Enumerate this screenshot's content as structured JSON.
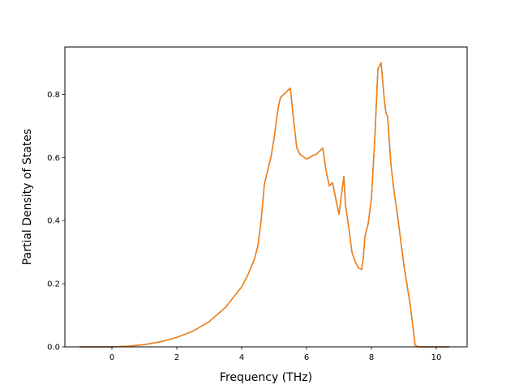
{
  "chart_data": {
    "type": "line",
    "title": "",
    "xlabel": "Frequency (THz)",
    "ylabel": "Partial Density of States",
    "xlim": [
      -1.45,
      10.95
    ],
    "ylim": [
      0.0,
      0.95
    ],
    "grid": false,
    "legend": "none",
    "xticks": [
      0,
      2,
      4,
      6,
      8,
      10
    ],
    "yticks": [
      0.0,
      0.2,
      0.4,
      0.6,
      0.8
    ],
    "xtick_labels": [
      "0",
      "2",
      "4",
      "6",
      "8",
      "10"
    ],
    "ytick_labels": [
      "0.0",
      "0.2",
      "0.4",
      "0.6",
      "0.8"
    ],
    "series": [
      {
        "color": "#1f77b4",
        "x": [
          -1.0,
          0.0,
          0.5,
          1.0,
          1.5,
          2.0,
          2.5,
          3.0,
          3.5,
          4.0,
          4.2,
          4.4,
          4.5,
          4.6,
          4.7,
          4.9,
          5.0,
          5.1,
          5.15,
          5.2,
          5.3,
          5.4,
          5.45,
          5.5,
          5.6,
          5.7,
          5.8,
          6.0,
          6.1,
          6.2,
          6.3,
          6.4,
          6.5,
          6.6,
          6.7,
          6.8,
          6.9,
          7.0,
          7.1,
          7.15,
          7.2,
          7.3,
          7.4,
          7.5,
          7.6,
          7.7,
          7.75,
          7.8,
          7.9,
          8.0,
          8.1,
          8.2,
          8.3,
          8.35,
          8.4,
          8.45,
          8.5,
          8.6,
          8.7,
          8.8,
          9.0,
          9.2,
          9.35,
          9.45,
          9.6,
          10.0,
          10.4
        ],
        "y": [
          0.0,
          0.0,
          0.002,
          0.007,
          0.016,
          0.03,
          0.05,
          0.08,
          0.125,
          0.19,
          0.23,
          0.28,
          0.32,
          0.4,
          0.515,
          0.6,
          0.66,
          0.74,
          0.77,
          0.79,
          0.8,
          0.81,
          0.815,
          0.82,
          0.72,
          0.63,
          0.61,
          0.595,
          0.6,
          0.607,
          0.61,
          0.62,
          0.63,
          0.56,
          0.51,
          0.52,
          0.47,
          0.42,
          0.5,
          0.54,
          0.45,
          0.38,
          0.3,
          0.27,
          0.25,
          0.245,
          0.28,
          0.35,
          0.39,
          0.47,
          0.65,
          0.88,
          0.9,
          0.84,
          0.78,
          0.74,
          0.73,
          0.58,
          0.49,
          0.42,
          0.26,
          0.13,
          0.005,
          0.0,
          0.0,
          0.0,
          0.0
        ]
      },
      {
        "color": "#ff7f0e",
        "x": [
          -1.0,
          0.0,
          0.5,
          1.0,
          1.5,
          2.0,
          2.5,
          3.0,
          3.5,
          4.0,
          4.2,
          4.4,
          4.5,
          4.6,
          4.7,
          4.9,
          5.0,
          5.1,
          5.15,
          5.2,
          5.3,
          5.4,
          5.45,
          5.5,
          5.6,
          5.7,
          5.8,
          6.0,
          6.1,
          6.2,
          6.3,
          6.4,
          6.5,
          6.6,
          6.7,
          6.8,
          6.9,
          7.0,
          7.1,
          7.15,
          7.2,
          7.3,
          7.4,
          7.5,
          7.6,
          7.7,
          7.75,
          7.8,
          7.9,
          8.0,
          8.1,
          8.2,
          8.3,
          8.35,
          8.4,
          8.45,
          8.5,
          8.6,
          8.7,
          8.8,
          9.0,
          9.2,
          9.35,
          9.45,
          9.6,
          10.0,
          10.4
        ],
        "y": [
          0.0,
          0.0,
          0.002,
          0.007,
          0.016,
          0.03,
          0.05,
          0.08,
          0.125,
          0.19,
          0.23,
          0.28,
          0.32,
          0.4,
          0.515,
          0.6,
          0.66,
          0.74,
          0.77,
          0.79,
          0.8,
          0.81,
          0.815,
          0.82,
          0.72,
          0.63,
          0.61,
          0.595,
          0.6,
          0.607,
          0.61,
          0.62,
          0.63,
          0.56,
          0.51,
          0.52,
          0.47,
          0.42,
          0.5,
          0.54,
          0.45,
          0.38,
          0.3,
          0.27,
          0.25,
          0.245,
          0.28,
          0.35,
          0.39,
          0.47,
          0.65,
          0.88,
          0.9,
          0.84,
          0.78,
          0.74,
          0.73,
          0.58,
          0.49,
          0.42,
          0.26,
          0.13,
          0.005,
          0.0,
          0.0,
          0.0,
          0.0
        ]
      }
    ]
  }
}
